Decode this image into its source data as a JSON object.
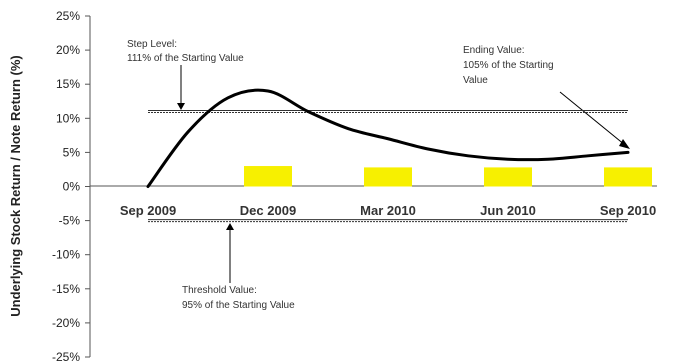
{
  "chart_data": {
    "type": "line",
    "title": "",
    "ylabel": "Underlying Stock Return / Note Return (%)",
    "xlabel": "",
    "ylim": [
      -25,
      25
    ],
    "y_ticks": [
      "25%",
      "20%",
      "15%",
      "10%",
      "5%",
      "0%",
      "-5%",
      "-10%",
      "-15%",
      "-20%",
      "-25%"
    ],
    "x_categories": [
      "Sep 2009",
      "Dec 2009",
      "Mar 2010",
      "Jun 2010",
      "Sep 2010"
    ],
    "series": [
      {
        "kind": "line",
        "color": "#000000",
        "points": [
          {
            "x": "Sep 2009",
            "y": 0
          },
          {
            "x": "Oct 2009",
            "y": 8
          },
          {
            "x": "Nov 2009",
            "y": 13
          },
          {
            "x": "Dec 2009",
            "y": 14
          },
          {
            "x": "Jan 2010",
            "y": 11
          },
          {
            "x": "Feb 2010",
            "y": 8.5
          },
          {
            "x": "Mar 2010",
            "y": 7
          },
          {
            "x": "Apr 2010",
            "y": 5.5
          },
          {
            "x": "May 2010",
            "y": 4.5
          },
          {
            "x": "Jun 2010",
            "y": 4
          },
          {
            "x": "Jul 2010",
            "y": 4
          },
          {
            "x": "Aug 2010",
            "y": 4.5
          },
          {
            "x": "Sep 2010",
            "y": 5
          }
        ]
      },
      {
        "kind": "bar",
        "color": "#f7f000",
        "categories": [
          "Dec 2009",
          "Mar 2010",
          "Jun 2010",
          "Sep 2010"
        ],
        "values": [
          3,
          2.8,
          2.8,
          2.8
        ]
      }
    ],
    "reference_lines": [
      {
        "name": "step-level",
        "y": 11
      },
      {
        "name": "threshold",
        "y": -5
      }
    ],
    "annotations": {
      "step_level": [
        "Step Level:",
        "111% of the Starting Value"
      ],
      "ending_value": [
        "Ending Value:",
        "105% of the Starting",
        "Value"
      ],
      "threshold_value": [
        "Threshold Value:",
        "95% of the Starting Value"
      ]
    }
  }
}
